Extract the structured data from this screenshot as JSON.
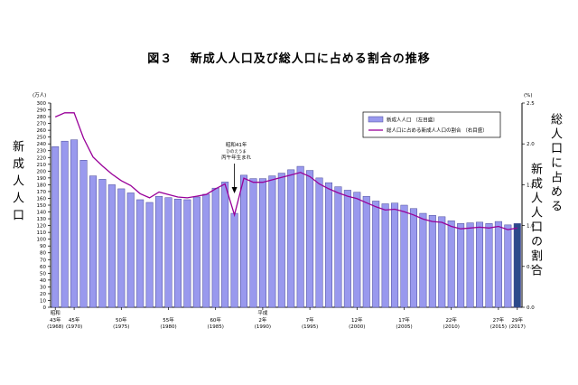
{
  "title": "図３　 新成人人口及び総人口に占める割合の推移",
  "left_axis_title": "新成人人口",
  "right_axis_title_line1": "総人口に占める",
  "right_axis_title_line2": "新成人人口の割合",
  "chart_data": {
    "type": "bar",
    "left_unit": "(万人)",
    "right_unit": "(%)",
    "ylim_left": [
      0,
      300
    ],
    "ylim_right": [
      0,
      2.5
    ],
    "left_ticks": [
      0,
      10,
      20,
      30,
      40,
      50,
      60,
      70,
      80,
      90,
      100,
      110,
      120,
      130,
      140,
      150,
      160,
      170,
      180,
      190,
      200,
      210,
      220,
      230,
      240,
      250,
      260,
      270,
      280,
      290,
      300
    ],
    "right_ticks": [
      "0.0",
      "0.5",
      "1.0",
      "1.5",
      "2.0",
      "2.5"
    ],
    "years": [
      1968,
      1969,
      1970,
      1971,
      1972,
      1973,
      1974,
      1975,
      1976,
      1977,
      1978,
      1979,
      1980,
      1981,
      1982,
      1983,
      1984,
      1985,
      1986,
      1987,
      1988,
      1989,
      1990,
      1991,
      1992,
      1993,
      1994,
      1995,
      1996,
      1997,
      1998,
      1999,
      2000,
      2001,
      2002,
      2003,
      2004,
      2005,
      2006,
      2007,
      2008,
      2009,
      2010,
      2011,
      2012,
      2013,
      2014,
      2015,
      2016,
      2017
    ],
    "series": [
      {
        "name": "新成人人口 （左目盛）",
        "type": "bar",
        "color": "#9999ee",
        "values": [
          236,
          244,
          246,
          216,
          193,
          188,
          180,
          174,
          168,
          158,
          154,
          163,
          161,
          159,
          158,
          162,
          166,
          175,
          184,
          138,
          194,
          189,
          189,
          193,
          197,
          202,
          207,
          201,
          190,
          183,
          177,
          172,
          169,
          163,
          156,
          152,
          153,
          150,
          145,
          138,
          135,
          133,
          127,
          123,
          124,
          125,
          123,
          126,
          121,
          123
        ]
      },
      {
        "name": "総人口に占める新成人人口の割合 （右目盛）",
        "type": "line",
        "color": "#990099",
        "values": [
          2.33,
          2.38,
          2.38,
          2.07,
          1.84,
          1.73,
          1.63,
          1.55,
          1.49,
          1.39,
          1.34,
          1.41,
          1.38,
          1.35,
          1.34,
          1.36,
          1.38,
          1.45,
          1.51,
          1.13,
          1.58,
          1.53,
          1.53,
          1.56,
          1.59,
          1.62,
          1.65,
          1.6,
          1.51,
          1.45,
          1.4,
          1.36,
          1.33,
          1.28,
          1.23,
          1.19,
          1.2,
          1.17,
          1.13,
          1.08,
          1.05,
          1.04,
          0.99,
          0.96,
          0.97,
          0.98,
          0.97,
          0.99,
          0.95,
          0.97
        ]
      }
    ],
    "x_tick_labels": [
      {
        "year": 1968,
        "era": "昭和",
        "lines": [
          "43年",
          "(1968)"
        ]
      },
      {
        "year": 1970,
        "lines": [
          "45年",
          "(1970)"
        ]
      },
      {
        "year": 1975,
        "lines": [
          "50年",
          "(1975)"
        ]
      },
      {
        "year": 1980,
        "lines": [
          "55年",
          "(1980)"
        ]
      },
      {
        "year": 1985,
        "lines": [
          "60年",
          "(1985)"
        ]
      },
      {
        "year": 1990,
        "era": "平成",
        "lines": [
          "2年",
          "(1990)"
        ]
      },
      {
        "year": 1995,
        "lines": [
          "7年",
          "(1995)"
        ]
      },
      {
        "year": 2000,
        "lines": [
          "12年",
          "(2000)"
        ]
      },
      {
        "year": 2005,
        "lines": [
          "17年",
          "(2005)"
        ]
      },
      {
        "year": 2010,
        "lines": [
          "22年",
          "(2010)"
        ]
      },
      {
        "year": 2015,
        "lines": [
          "27年",
          "(2015)"
        ]
      },
      {
        "year": 2017,
        "lines": [
          "29年",
          "(2017)"
        ]
      }
    ],
    "annotation": {
      "year": 1987,
      "lines": [
        "昭和41年",
        "ひのえうま",
        "丙午年生まれ"
      ]
    },
    "highlight_year": 2017,
    "highlight_color": "#2b4a8a",
    "legend": {
      "position": "top-right"
    },
    "grid": false
  }
}
